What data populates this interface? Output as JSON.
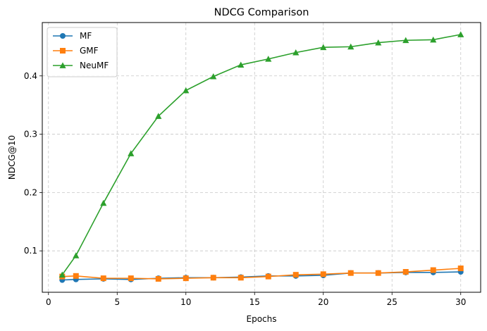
{
  "chart_data": {
    "type": "line",
    "title": "NDCG Comparison",
    "xlabel": "Epochs",
    "ylabel": "NDCG@10",
    "xlim": [
      -0.45,
      31.45
    ],
    "ylim": [
      0.029,
      0.4915
    ],
    "xticks": [
      0,
      5,
      10,
      15,
      20,
      25,
      30
    ],
    "yticks": [
      0.1,
      0.2,
      0.3,
      0.4
    ],
    "grid": true,
    "grid_style": "dashed",
    "legend_position": "upper left",
    "x": [
      1,
      2,
      4,
      6,
      8,
      10,
      12,
      14,
      16,
      18,
      20,
      22,
      24,
      26,
      28,
      30
    ],
    "series": [
      {
        "name": "MF",
        "color": "#1f77b4",
        "marker": "circle",
        "values": [
          0.05,
          0.051,
          0.052,
          0.051,
          0.053,
          0.054,
          0.054,
          0.055,
          0.057,
          0.057,
          0.058,
          0.062,
          0.062,
          0.063,
          0.063,
          0.064
        ]
      },
      {
        "name": "GMF",
        "color": "#ff7f0e",
        "marker": "square",
        "values": [
          0.056,
          0.057,
          0.053,
          0.053,
          0.052,
          0.053,
          0.054,
          0.054,
          0.056,
          0.059,
          0.06,
          0.062,
          0.062,
          0.064,
          0.067,
          0.07
        ]
      },
      {
        "name": "NeuMF",
        "color": "#2ca02c",
        "marker": "triangle",
        "values": [
          0.059,
          0.092,
          0.182,
          0.267,
          0.331,
          0.375,
          0.399,
          0.419,
          0.429,
          0.44,
          0.449,
          0.45,
          0.457,
          0.461,
          0.462,
          0.471
        ]
      }
    ]
  }
}
